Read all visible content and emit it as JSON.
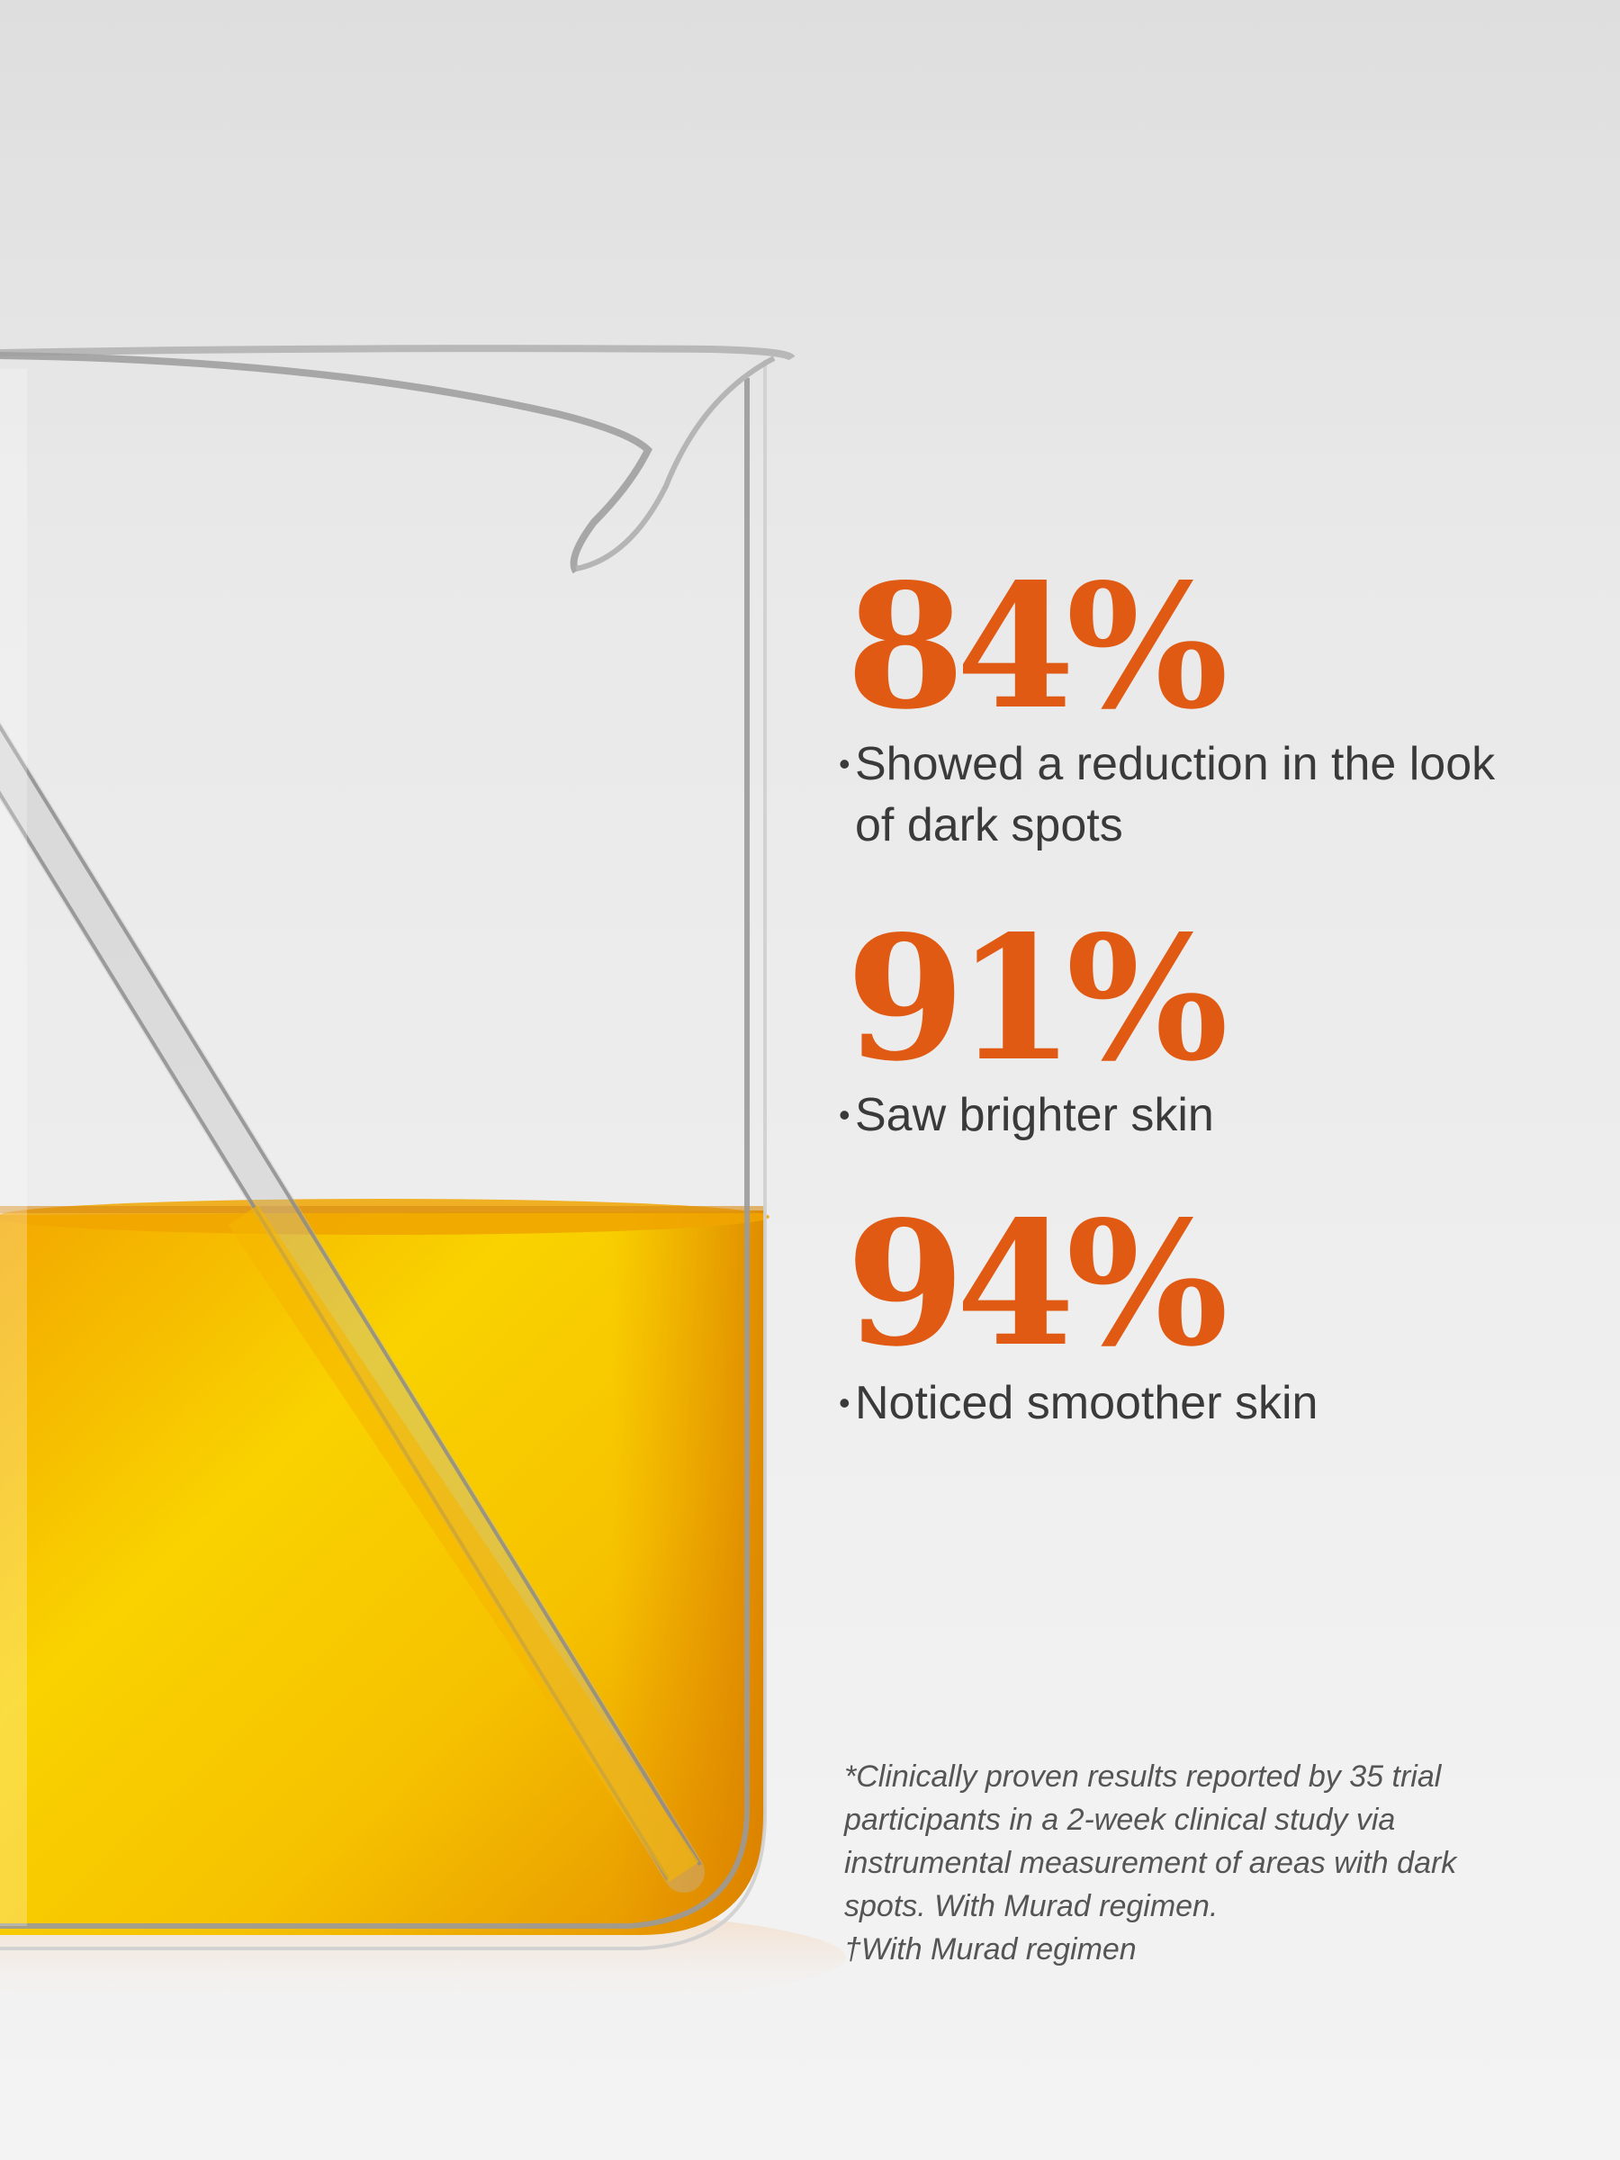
{
  "stats": [
    {
      "value": "84%",
      "description": "Showed a reduction in the look of dark spots"
    },
    {
      "value": "91%",
      "description": "Saw brighter skin"
    },
    {
      "value": "94%",
      "description": "Noticed smoother skin"
    }
  ],
  "disclaimer": {
    "main": "*Clinically proven results reported by 35 trial participants in a 2-week clinical study via instrumental measurement of areas with dark spots. With Murad regimen.",
    "footnote": "†With Murad regimen"
  },
  "colors": {
    "accent": "#e05a14",
    "body_text": "#3a3a3a",
    "disclaimer_text": "#555555",
    "liquid_light": "#f9d400",
    "liquid_dark": "#e38e00"
  }
}
